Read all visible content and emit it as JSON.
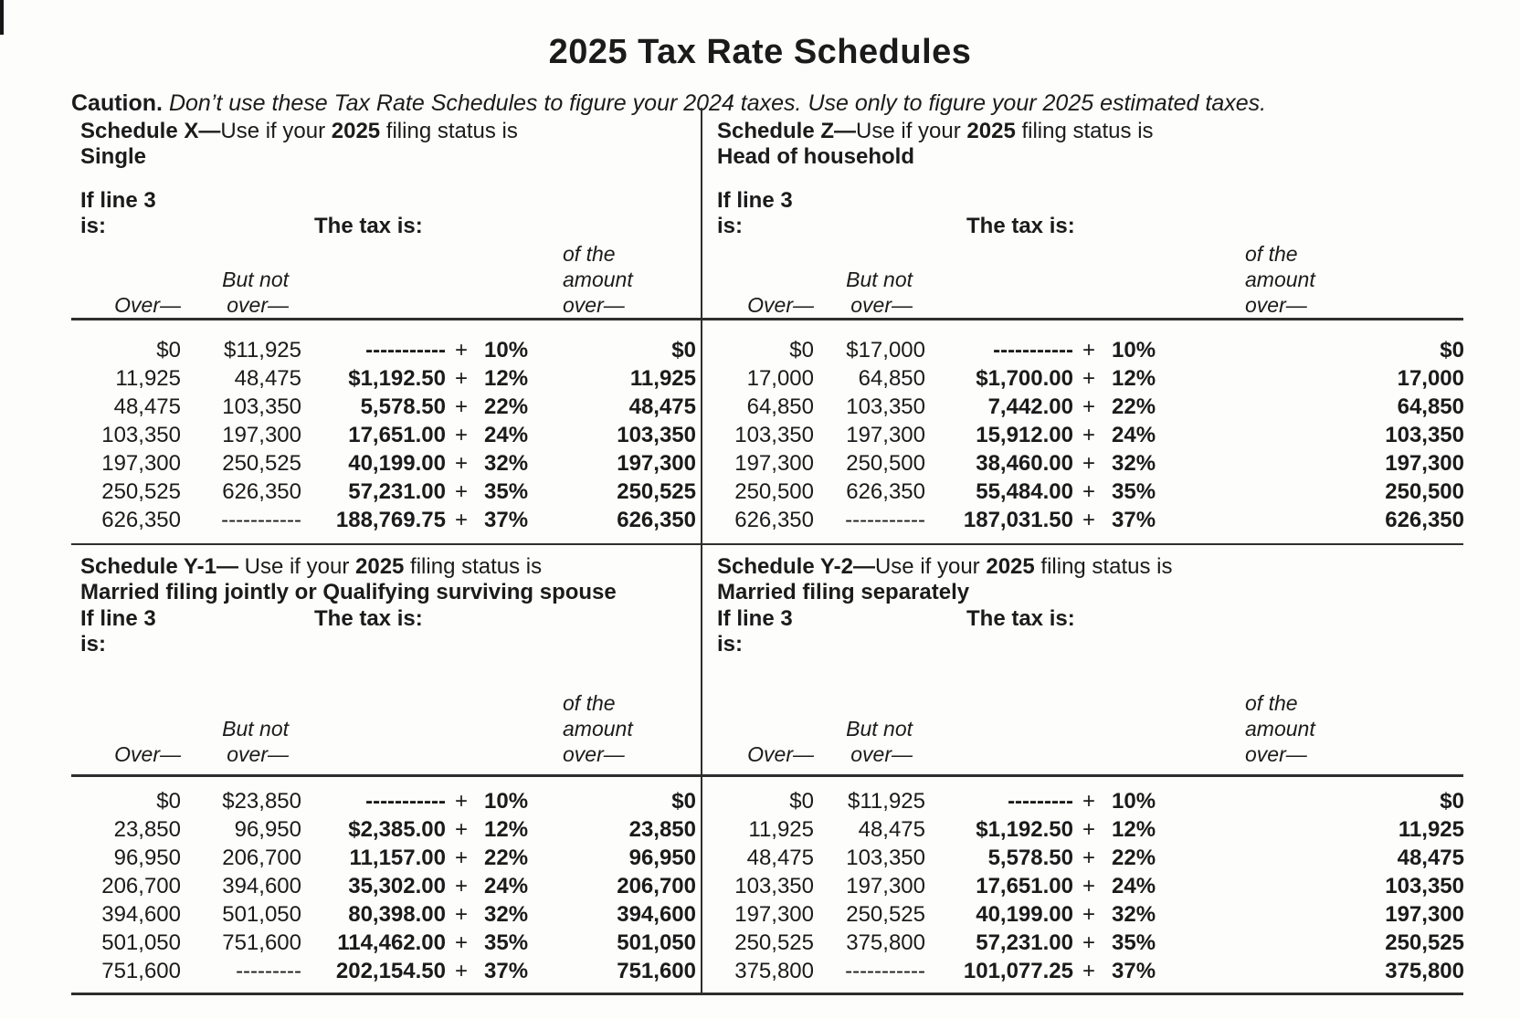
{
  "page": {
    "title": "2025 Tax Rate Schedules",
    "caution_label": "Caution.",
    "caution_text": " Don’t use these Tax Rate Schedules to figure your 2024 taxes. Use only to figure your 2025 estimated taxes."
  },
  "labels": {
    "if_line_1": "If line 3",
    "if_line_2": "is:",
    "tax_is": "The tax is:",
    "over": "Over—",
    "but_not_1": "But not",
    "but_not_2": "over—",
    "of_amount_1": "of the",
    "of_amount_2": "amount",
    "of_amount_3": "over—"
  },
  "schedules": [
    {
      "key": "x",
      "name": "Schedule X—",
      "use": "Use if your ",
      "year": "2025",
      "tail": " filing status is",
      "status": "Single",
      "rows": [
        {
          "over": "$0",
          "but_not": "$11,925",
          "tax": "-----------",
          "plus": "+",
          "rate": "10%",
          "of_amount": "$0"
        },
        {
          "over": "11,925",
          "but_not": "48,475",
          "tax": "$1,192.50",
          "plus": "+",
          "rate": "12%",
          "of_amount": "11,925"
        },
        {
          "over": "48,475",
          "but_not": "103,350",
          "tax": "5,578.50",
          "plus": "+",
          "rate": "22%",
          "of_amount": "48,475"
        },
        {
          "over": "103,350",
          "but_not": "197,300",
          "tax": "17,651.00",
          "plus": "+",
          "rate": "24%",
          "of_amount": "103,350"
        },
        {
          "over": "197,300",
          "but_not": "250,525",
          "tax": "40,199.00",
          "plus": "+",
          "rate": "32%",
          "of_amount": "197,300"
        },
        {
          "over": "250,525",
          "but_not": "626,350",
          "tax": "57,231.00",
          "plus": "+",
          "rate": "35%",
          "of_amount": "250,525"
        },
        {
          "over": "626,350",
          "but_not": "-----------",
          "tax": "188,769.75",
          "plus": "+",
          "rate": "37%",
          "of_amount": "626,350"
        }
      ]
    },
    {
      "key": "z",
      "name": "Schedule Z—",
      "use": "Use if your ",
      "year": "2025",
      "tail": " filing status is",
      "status": "Head of household",
      "rows": [
        {
          "over": "$0",
          "but_not": "$17,000",
          "tax": "-----------",
          "plus": "+",
          "rate": "10%",
          "of_amount": "$0"
        },
        {
          "over": "17,000",
          "but_not": "64,850",
          "tax": "$1,700.00",
          "plus": "+",
          "rate": "12%",
          "of_amount": "17,000"
        },
        {
          "over": "64,850",
          "but_not": "103,350",
          "tax": "7,442.00",
          "plus": "+",
          "rate": "22%",
          "of_amount": "64,850"
        },
        {
          "over": "103,350",
          "but_not": "197,300",
          "tax": "15,912.00",
          "plus": "+",
          "rate": "24%",
          "of_amount": "103,350"
        },
        {
          "over": "197,300",
          "but_not": "250,500",
          "tax": "38,460.00",
          "plus": "+",
          "rate": "32%",
          "of_amount": "197,300"
        },
        {
          "over": "250,500",
          "but_not": "626,350",
          "tax": "55,484.00",
          "plus": "+",
          "rate": "35%",
          "of_amount": "250,500"
        },
        {
          "over": "626,350",
          "but_not": "-----------",
          "tax": "187,031.50",
          "plus": "+",
          "rate": "37%",
          "of_amount": "626,350"
        }
      ]
    },
    {
      "key": "y1",
      "name": "Schedule Y-1— ",
      "use": "Use if your ",
      "year": "2025",
      "tail": " filing status is",
      "status": "Married filing jointly or Qualifying surviving spouse",
      "rows": [
        {
          "over": "$0",
          "but_not": "$23,850",
          "tax": "-----------",
          "plus": "+",
          "rate": "10%",
          "of_amount": "$0"
        },
        {
          "over": "23,850",
          "but_not": "96,950",
          "tax": "$2,385.00",
          "plus": "+",
          "rate": "12%",
          "of_amount": "23,850"
        },
        {
          "over": "96,950",
          "but_not": "206,700",
          "tax": "11,157.00",
          "plus": "+",
          "rate": "22%",
          "of_amount": "96,950"
        },
        {
          "over": "206,700",
          "but_not": "394,600",
          "tax": "35,302.00",
          "plus": "+",
          "rate": "24%",
          "of_amount": "206,700"
        },
        {
          "over": "394,600",
          "but_not": "501,050",
          "tax": "80,398.00",
          "plus": "+",
          "rate": "32%",
          "of_amount": "394,600"
        },
        {
          "over": "501,050",
          "but_not": "751,600",
          "tax": "114,462.00",
          "plus": "+",
          "rate": "35%",
          "of_amount": "501,050"
        },
        {
          "over": "751,600",
          "but_not": "---------",
          "tax": "202,154.50",
          "plus": "+",
          "rate": "37%",
          "of_amount": "751,600"
        }
      ]
    },
    {
      "key": "y2",
      "name": "Schedule Y-2—",
      "use": "Use if your ",
      "year": "2025",
      "tail": " filing status is",
      "status": "Married filing separately",
      "rows": [
        {
          "over": "$0",
          "but_not": "$11,925",
          "tax": "---------",
          "plus": "+",
          "rate": "10%",
          "of_amount": "$0"
        },
        {
          "over": "11,925",
          "but_not": "48,475",
          "tax": "$1,192.50",
          "plus": "+",
          "rate": "12%",
          "of_amount": "11,925"
        },
        {
          "over": "48,475",
          "but_not": "103,350",
          "tax": "5,578.50",
          "plus": "+",
          "rate": "22%",
          "of_amount": "48,475"
        },
        {
          "over": "103,350",
          "but_not": "197,300",
          "tax": "17,651.00",
          "plus": "+",
          "rate": "24%",
          "of_amount": "103,350"
        },
        {
          "over": "197,300",
          "but_not": "250,525",
          "tax": "40,199.00",
          "plus": "+",
          "rate": "32%",
          "of_amount": "197,300"
        },
        {
          "over": "250,525",
          "but_not": "375,800",
          "tax": "57,231.00",
          "plus": "+",
          "rate": "35%",
          "of_amount": "250,525"
        },
        {
          "over": "375,800",
          "but_not": "-----------",
          "tax": "101,077.25",
          "plus": "+",
          "rate": "37%",
          "of_amount": "375,800"
        }
      ]
    }
  ]
}
